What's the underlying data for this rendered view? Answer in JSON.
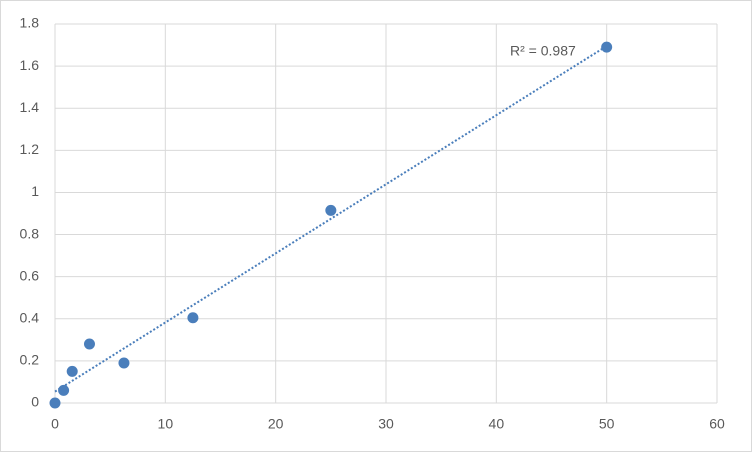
{
  "chart_data": {
    "type": "scatter",
    "x": [
      0,
      0.78,
      1.56,
      3.125,
      6.25,
      12.5,
      25,
      50
    ],
    "values": [
      0,
      0.06,
      0.15,
      0.28,
      0.19,
      0.405,
      0.915,
      1.69
    ],
    "color": "#4a7ebb",
    "trendline": "linear",
    "annotation": "R² = 0.987",
    "xlim": [
      0,
      60
    ],
    "xticks": [
      0,
      10,
      20,
      30,
      40,
      50,
      60
    ],
    "ylim": [
      0,
      1.8
    ],
    "yticks": [
      0,
      0.2,
      0.4,
      0.6,
      0.8,
      1,
      1.2,
      1.4,
      1.6,
      1.8
    ],
    "grid": true
  }
}
